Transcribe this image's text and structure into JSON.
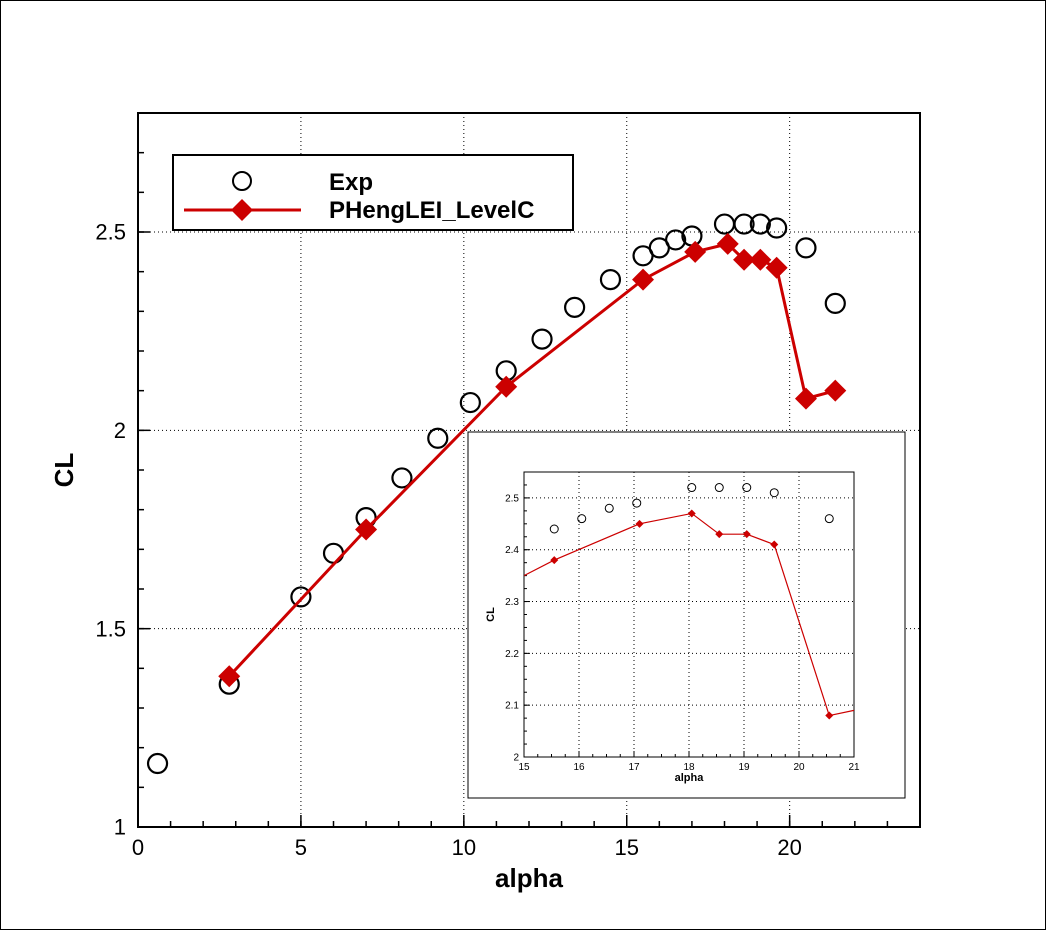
{
  "chart_data": [
    {
      "type": "scatter+line",
      "title": "",
      "xlabel": "alpha",
      "ylabel": "CL",
      "xlim": [
        0,
        24
      ],
      "ylim": [
        1,
        2.8
      ],
      "xticks": [
        "0",
        "5",
        "10",
        "15",
        "20"
      ],
      "yticks": [
        "1",
        "1.5",
        "2",
        "2.5"
      ],
      "grid": true,
      "legend_position": "top-left",
      "series": [
        {
          "name": "Exp",
          "style": "open-circle",
          "color": "#000000",
          "x": [
            0.6,
            2.8,
            5.0,
            6.0,
            7.0,
            8.1,
            9.2,
            10.2,
            11.3,
            12.4,
            13.4,
            14.5,
            15.5,
            16.0,
            16.5,
            17.0,
            18.0,
            18.6,
            19.1,
            19.6,
            20.5,
            21.4
          ],
          "y": [
            1.16,
            1.36,
            1.58,
            1.69,
            1.78,
            1.88,
            1.98,
            2.07,
            2.15,
            2.23,
            2.31,
            2.38,
            2.44,
            2.46,
            2.48,
            2.49,
            2.52,
            2.52,
            2.52,
            2.51,
            2.46,
            2.32
          ]
        },
        {
          "name": "PHengLEI_LevelC",
          "style": "line-diamond",
          "color": "#cc0000",
          "x": [
            2.8,
            7.0,
            11.3,
            15.5,
            17.1,
            18.1,
            18.6,
            19.1,
            19.6,
            20.5,
            21.4
          ],
          "y": [
            1.38,
            1.75,
            2.11,
            2.38,
            2.45,
            2.47,
            2.43,
            2.43,
            2.41,
            2.08,
            2.1
          ]
        }
      ]
    },
    {
      "type": "scatter+line",
      "title": "",
      "xlabel": "alpha",
      "ylabel": "CL",
      "xlim": [
        15,
        21
      ],
      "ylim": [
        2,
        2.55
      ],
      "xticks": [
        "15",
        "16",
        "17",
        "18",
        "19",
        "20",
        "21"
      ],
      "yticks": [
        "2",
        "2.1",
        "2.2",
        "2.3",
        "2.4",
        "2.5"
      ],
      "grid": true,
      "series": [
        {
          "name": "Exp",
          "style": "open-circle",
          "color": "#000000",
          "x": [
            15.55,
            16.05,
            16.55,
            17.05,
            18.05,
            18.55,
            19.05,
            19.55,
            20.55
          ],
          "y": [
            2.44,
            2.46,
            2.48,
            2.49,
            2.52,
            2.52,
            2.52,
            2.51,
            2.46
          ]
        },
        {
          "name": "PHengLEI_LevelC",
          "style": "line-diamond",
          "color": "#cc0000",
          "x": [
            15.0,
            15.55,
            17.1,
            18.05,
            18.55,
            19.05,
            19.55,
            20.55,
            21.0
          ],
          "y": [
            2.35,
            2.38,
            2.45,
            2.47,
            2.43,
            2.43,
            2.41,
            2.08,
            2.09
          ],
          "markers_x": [
            15.55,
            17.1,
            18.05,
            18.55,
            19.05,
            19.55,
            20.55
          ]
        }
      ]
    }
  ]
}
